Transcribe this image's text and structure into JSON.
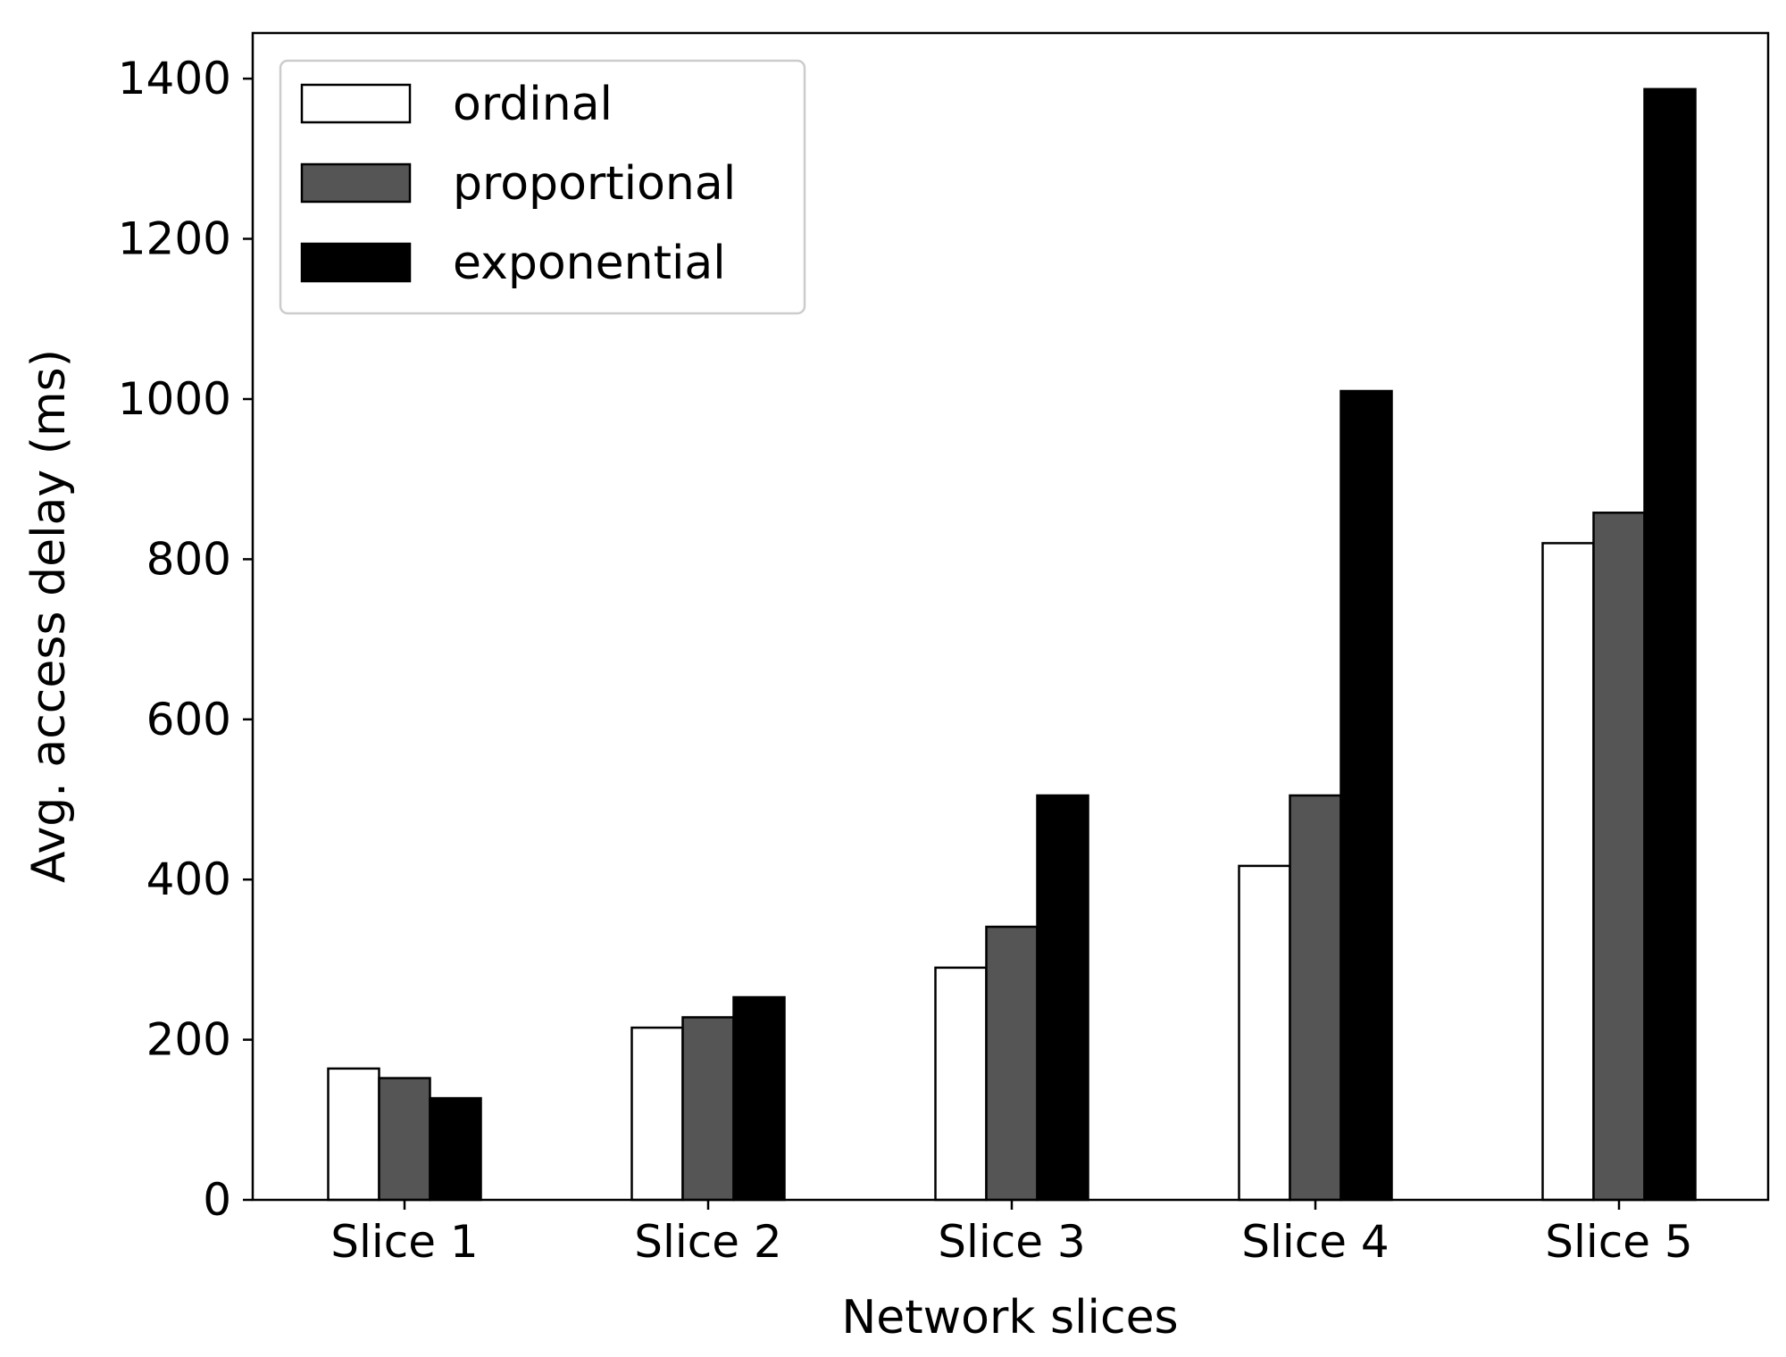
{
  "chart_data": {
    "type": "bar",
    "title": "",
    "xlabel": "Network slices",
    "ylabel": "Avg. access delay (ms)",
    "categories": [
      "Slice 1",
      "Slice 2",
      "Slice 3",
      "Slice 4",
      "Slice 5"
    ],
    "series": [
      {
        "name": "ordinal",
        "color": "#ffffff",
        "values": [
          164,
          215,
          290,
          417,
          820
        ]
      },
      {
        "name": "proportional",
        "color": "#555555",
        "values": [
          152,
          228,
          341,
          505,
          858
        ]
      },
      {
        "name": "exponential",
        "color": "#000000",
        "values": [
          127,
          253,
          505,
          1010,
          1387
        ]
      }
    ],
    "ylim": [
      0,
      1457
    ],
    "yticks": [
      0,
      200,
      400,
      600,
      800,
      1000,
      1200,
      1400
    ],
    "grid": false,
    "legend_position": "upper-left"
  }
}
